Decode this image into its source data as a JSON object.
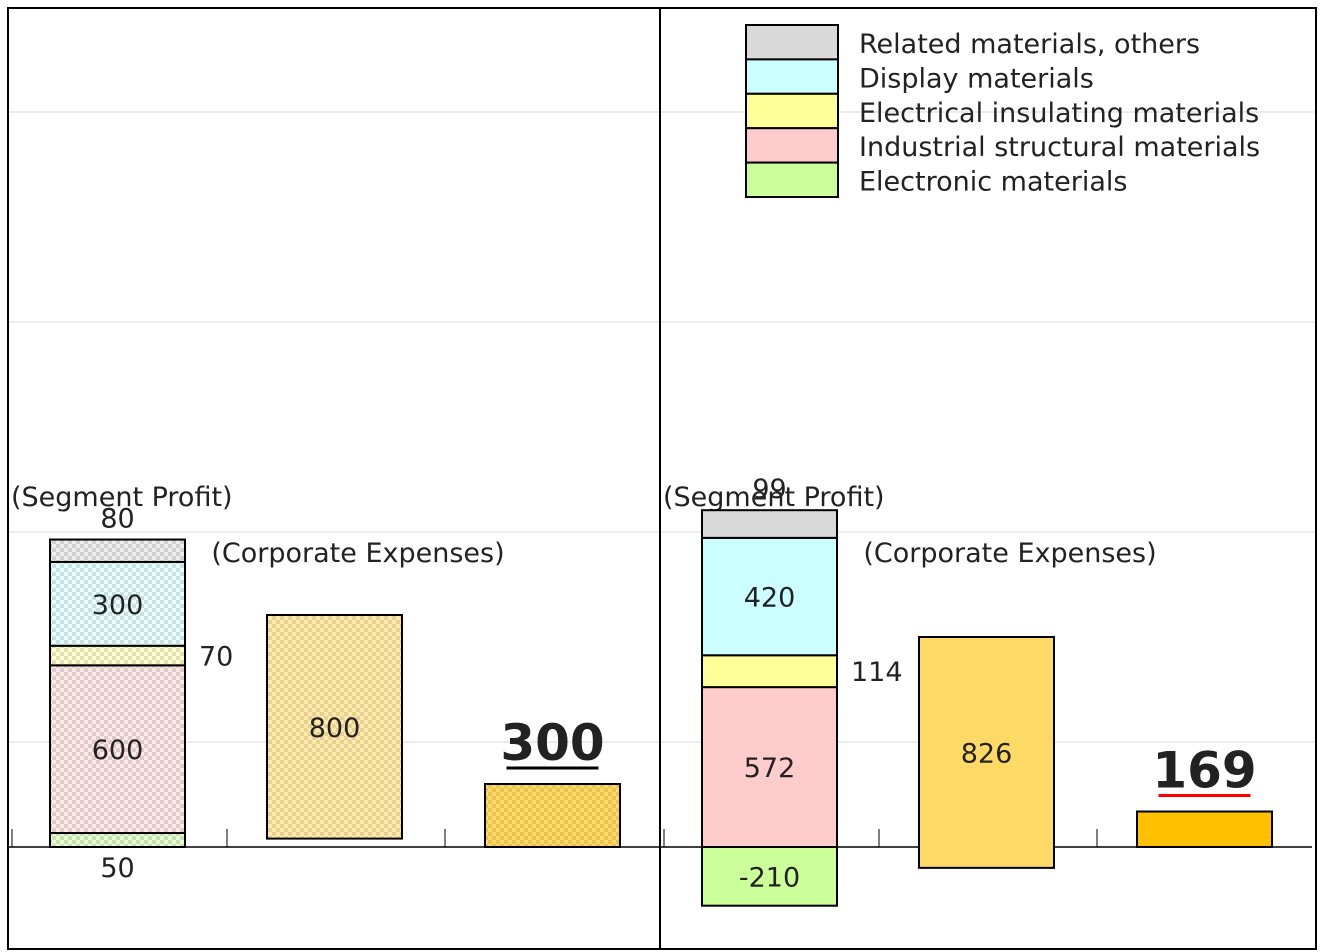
{
  "legend": [
    {
      "key": "others",
      "label": "Related materials, others",
      "color": "#d9d9d9"
    },
    {
      "key": "display",
      "label": "Display materials",
      "color": "#ccffff"
    },
    {
      "key": "insulating",
      "label": "Electrical insulating materials",
      "color": "#ffff99"
    },
    {
      "key": "industrial",
      "label": "Industrial structural materials",
      "color": "#ffcccc"
    },
    {
      "key": "electronic",
      "label": "Electronic materials",
      "color": "#ccff99"
    }
  ],
  "chart_data": [
    {
      "type": "bar",
      "pattern": "checkered",
      "segment_profit_label": "(Segment Profit)",
      "corporate_expenses_label": "(Corporate Expenses)",
      "segments": [
        {
          "key": "electronic",
          "value": 50
        },
        {
          "key": "industrial",
          "value": 600
        },
        {
          "key": "insulating",
          "value": 70
        },
        {
          "key": "display",
          "value": 300
        },
        {
          "key": "others",
          "value": 80
        }
      ],
      "segment_labels": {
        "electronic": "50",
        "industrial": "600",
        "insulating": "70",
        "display": "300",
        "others": "80"
      },
      "corporate_expenses": {
        "value": 800,
        "label": "800"
      },
      "total": {
        "value": 300,
        "label": "300",
        "color": "#000000"
      }
    },
    {
      "type": "bar",
      "pattern": "solid",
      "segment_profit_label": "(Segment Profit)",
      "corporate_expenses_label": "(Corporate Expenses)",
      "segments": [
        {
          "key": "electronic",
          "value": -210
        },
        {
          "key": "industrial",
          "value": 572
        },
        {
          "key": "insulating",
          "value": 114
        },
        {
          "key": "display",
          "value": 420
        },
        {
          "key": "others",
          "value": 99
        }
      ],
      "segment_labels": {
        "electronic": "-210",
        "industrial": "572",
        "insulating": "114",
        "display": "420",
        "others": "99"
      },
      "corporate_expenses": {
        "value": 826,
        "label": "826"
      },
      "total": {
        "value": 169,
        "label": "169",
        "color": "#ff0000"
      }
    }
  ],
  "colors": {
    "corporate": "#ffd966",
    "total": "#ffc000"
  }
}
